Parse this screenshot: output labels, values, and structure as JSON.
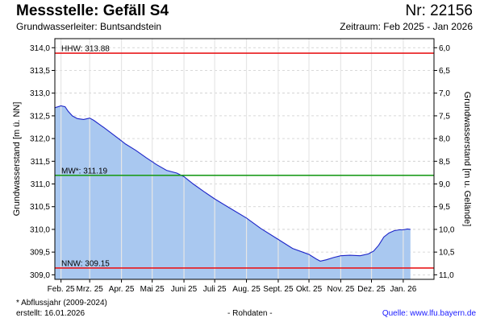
{
  "header": {
    "title": "Messstelle: Gefäll S4",
    "station_number": "Nr: 22156",
    "aquifer": "Grundwasserleiter: Buntsandstein",
    "period": "Zeitraum: Feb 2025 - Jan 2026"
  },
  "footer": {
    "footnote": "* Abflussjahr (2009-2024)",
    "created": "erstellt:  16.01.2026",
    "raw_data": "- Rohdaten -",
    "source": "Quelle:  www.lfu.bayern.de"
  },
  "chart_data": {
    "type": "area",
    "ylabel": "Grundwasserstand [m ü. NN]",
    "ylabel_right": "Grundwasserstand [m u. Gelände]",
    "ylim": [
      308.9,
      314.2
    ],
    "xlim": [
      "2025-01-26",
      "2026-01-31"
    ],
    "y_ticks": [
      "309,0",
      "309,5",
      "310,0",
      "310,5",
      "311,0",
      "311,5",
      "312,0",
      "312,5",
      "313,0",
      "313,5",
      "314,0"
    ],
    "y_ticks_right": [
      "11,0",
      "10,5",
      "10,0",
      "9,5",
      "9,0",
      "8,5",
      "8,0",
      "7,5",
      "7,0",
      "6,5",
      "6,0"
    ],
    "x_ticks": [
      "Feb. 25",
      "Mrz. 25",
      "Apr. 25",
      "Mai 25",
      "Juni 25",
      "Juli 25",
      "Aug. 25",
      "Sept. 25",
      "Okt. 25",
      "Nov. 25",
      "Dez. 25",
      "Jan. 26"
    ],
    "x_tick_dates": [
      "2025-02-01",
      "2025-03-01",
      "2025-04-01",
      "2025-05-01",
      "2025-06-01",
      "2025-07-01",
      "2025-08-01",
      "2025-09-01",
      "2025-10-01",
      "2025-11-01",
      "2025-12-01",
      "2026-01-01"
    ],
    "grid": true,
    "reference_lines": [
      {
        "label": "HHW: 313.88",
        "value": 313.88,
        "color": "#e8191c"
      },
      {
        "label": "MW*: 311.19",
        "value": 311.19,
        "color": "#1e9c1e"
      },
      {
        "label": "NNW: 309.15",
        "value": 309.15,
        "color": "#e8191c"
      }
    ],
    "series": [
      {
        "color": "#1c24c8",
        "fill": "#a9c8f0",
        "x": [
          "2025-01-26",
          "2025-02-01",
          "2025-02-05",
          "2025-02-08",
          "2025-02-12",
          "2025-02-17",
          "2025-02-23",
          "2025-03-01",
          "2025-03-05",
          "2025-03-10",
          "2025-03-15",
          "2025-03-22",
          "2025-03-29",
          "2025-04-05",
          "2025-04-15",
          "2025-04-25",
          "2025-05-05",
          "2025-05-15",
          "2025-05-25",
          "2025-06-01",
          "2025-06-10",
          "2025-06-20",
          "2025-07-01",
          "2025-07-15",
          "2025-08-01",
          "2025-08-15",
          "2025-09-01",
          "2025-09-15",
          "2025-10-01",
          "2025-10-08",
          "2025-10-12",
          "2025-10-18",
          "2025-10-25",
          "2025-11-01",
          "2025-11-10",
          "2025-11-20",
          "2025-11-28",
          "2025-12-03",
          "2025-12-08",
          "2025-12-13",
          "2025-12-18",
          "2025-12-23",
          "2025-12-28",
          "2026-01-01",
          "2026-01-05",
          "2026-01-08"
        ],
        "y": [
          312.68,
          312.72,
          312.7,
          312.6,
          312.5,
          312.44,
          312.42,
          312.45,
          312.4,
          312.32,
          312.24,
          312.12,
          312.0,
          311.88,
          311.74,
          311.58,
          311.43,
          311.3,
          311.24,
          311.16,
          311.0,
          310.84,
          310.67,
          310.48,
          310.25,
          310.02,
          309.78,
          309.58,
          309.45,
          309.35,
          309.3,
          309.33,
          309.38,
          309.42,
          309.43,
          309.42,
          309.46,
          309.52,
          309.65,
          309.83,
          309.92,
          309.97,
          309.99,
          309.99,
          310.01,
          310.0
        ]
      }
    ]
  }
}
